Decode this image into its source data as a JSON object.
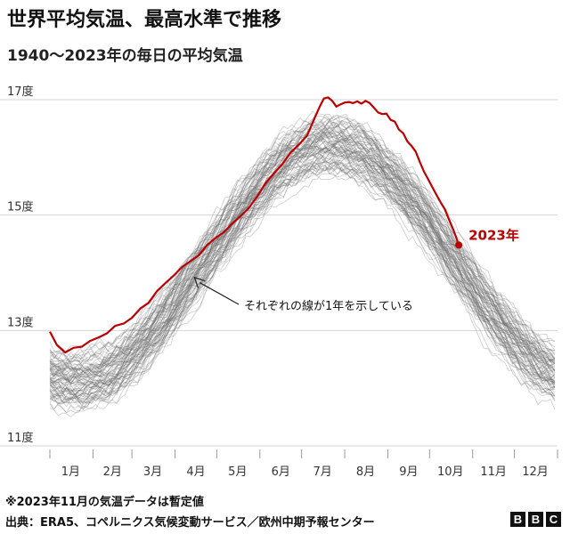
{
  "header": {
    "title": "世界平均気温、最高水準で推移",
    "subtitle": "1940〜2023年の毎日の平均気温"
  },
  "chart_data": {
    "type": "line",
    "ylim": [
      11,
      17
    ],
    "yticks": [
      {
        "value": 17,
        "label": "17度"
      },
      {
        "value": 15,
        "label": "15度"
      },
      {
        "value": 13,
        "label": "13度"
      },
      {
        "value": 11,
        "label": "11度"
      }
    ],
    "xlim": [
      1,
      366
    ],
    "months": [
      {
        "label": "1月",
        "day": 16
      },
      {
        "label": "2月",
        "day": 46
      },
      {
        "label": "3月",
        "day": 75
      },
      {
        "label": "4月",
        "day": 106
      },
      {
        "label": "5月",
        "day": 136
      },
      {
        "label": "6月",
        "day": 167
      },
      {
        "label": "7月",
        "day": 197
      },
      {
        "label": "8月",
        "day": 228
      },
      {
        "label": "9月",
        "day": 259
      },
      {
        "label": "10月",
        "day": 289
      },
      {
        "label": "11月",
        "day": 320
      },
      {
        "label": "12月",
        "day": 350
      }
    ],
    "highlight_series": {
      "name": "2023年",
      "color": "#b80000",
      "points": [
        [
          1,
          12.98
        ],
        [
          6,
          12.75
        ],
        [
          12,
          12.62
        ],
        [
          18,
          12.7
        ],
        [
          24,
          12.72
        ],
        [
          30,
          12.82
        ],
        [
          36,
          12.88
        ],
        [
          42,
          12.95
        ],
        [
          48,
          13.08
        ],
        [
          54,
          13.12
        ],
        [
          60,
          13.22
        ],
        [
          66,
          13.38
        ],
        [
          72,
          13.48
        ],
        [
          78,
          13.68
        ],
        [
          84,
          13.82
        ],
        [
          90,
          13.95
        ],
        [
          96,
          14.1
        ],
        [
          102,
          14.2
        ],
        [
          108,
          14.3
        ],
        [
          114,
          14.48
        ],
        [
          120,
          14.6
        ],
        [
          126,
          14.7
        ],
        [
          132,
          14.85
        ],
        [
          138,
          14.98
        ],
        [
          144,
          15.12
        ],
        [
          150,
          15.32
        ],
        [
          156,
          15.55
        ],
        [
          162,
          15.72
        ],
        [
          168,
          15.88
        ],
        [
          174,
          16.08
        ],
        [
          180,
          16.22
        ],
        [
          186,
          16.38
        ],
        [
          189,
          16.55
        ],
        [
          192,
          16.72
        ],
        [
          195,
          16.88
        ],
        [
          198,
          17.02
        ],
        [
          201,
          17.04
        ],
        [
          204,
          16.98
        ],
        [
          207,
          16.88
        ],
        [
          210,
          16.92
        ],
        [
          213,
          16.95
        ],
        [
          216,
          16.96
        ],
        [
          219,
          16.94
        ],
        [
          222,
          16.97
        ],
        [
          225,
          16.93
        ],
        [
          228,
          16.98
        ],
        [
          231,
          16.94
        ],
        [
          234,
          16.86
        ],
        [
          237,
          16.78
        ],
        [
          240,
          16.75
        ],
        [
          243,
          16.76
        ],
        [
          246,
          16.65
        ],
        [
          249,
          16.62
        ],
        [
          252,
          16.48
        ],
        [
          255,
          16.42
        ],
        [
          258,
          16.28
        ],
        [
          261,
          16.2
        ],
        [
          264,
          16.1
        ],
        [
          267,
          15.92
        ],
        [
          270,
          15.75
        ],
        [
          273,
          15.62
        ],
        [
          276,
          15.48
        ],
        [
          279,
          15.35
        ],
        [
          282,
          15.22
        ],
        [
          285,
          15.1
        ],
        [
          288,
          14.92
        ],
        [
          291,
          14.75
        ],
        [
          293,
          14.62
        ],
        [
          295,
          14.48
        ]
      ],
      "end_label": "2023年"
    },
    "background_series_description_count": 83,
    "annotation": {
      "text": "それぞれの線が1年を示している",
      "points_to_day": 105,
      "points_to_value": 13.92
    },
    "grid": true
  },
  "footer": {
    "note": "※2023年11月の気温データは暫定値",
    "source": "出典：ERA5、コペルニクス気候変動サービス／欧州中期予報センター",
    "logo_letters": [
      "B",
      "B",
      "C"
    ]
  }
}
